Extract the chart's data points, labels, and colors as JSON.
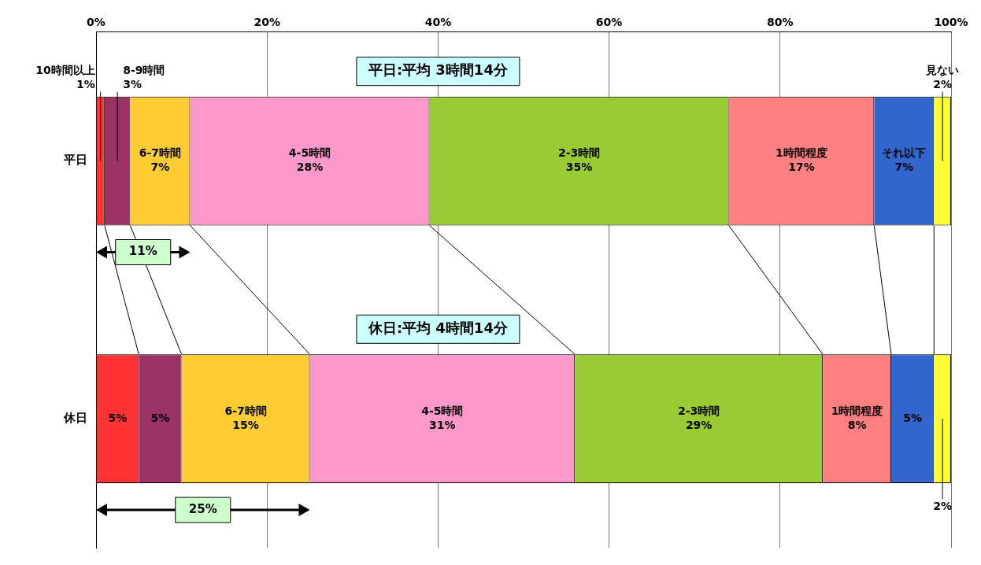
{
  "chart_data": {
    "type": "bar",
    "orientation": "horizontal",
    "stacked": true,
    "categories": [
      "平日",
      "休日"
    ],
    "xlim": [
      0,
      100
    ],
    "xticks": [
      {
        "value": 0,
        "label": "0%"
      },
      {
        "value": 20,
        "label": "20%"
      },
      {
        "value": 40,
        "label": "40%"
      },
      {
        "value": 60,
        "label": "60%"
      },
      {
        "value": 80,
        "label": "80%"
      },
      {
        "value": 100,
        "label": "100%"
      }
    ],
    "grid": "x",
    "legend": false,
    "series": [
      {
        "name": "10時間以上",
        "color": "#ff3333",
        "values": [
          1,
          5
        ],
        "value_labels": [
          "1%",
          "5%"
        ]
      },
      {
        "name": "8-9時間",
        "color": "#993366",
        "values": [
          3,
          5
        ],
        "value_labels": [
          "3%",
          "5%"
        ]
      },
      {
        "name": "6-7時間",
        "color": "#ffcc33",
        "values": [
          7,
          15
        ],
        "value_labels": [
          "7%",
          "15%"
        ]
      },
      {
        "name": "4-5時間",
        "color": "#ff99cc",
        "values": [
          28,
          31
        ],
        "value_labels": [
          "28%",
          "31%"
        ]
      },
      {
        "name": "2-3時間",
        "color": "#99cc33",
        "values": [
          35,
          29
        ],
        "value_labels": [
          "35%",
          "29%"
        ]
      },
      {
        "name": "1時間程度",
        "color": "#ff8080",
        "values": [
          17,
          8
        ],
        "value_labels": [
          "17%",
          "8%"
        ]
      },
      {
        "name": "それ以下",
        "color": "#3366cc",
        "values": [
          7,
          5
        ],
        "value_labels": [
          "7%",
          "5%"
        ]
      },
      {
        "name": "見ない",
        "color": "#ffff33",
        "values": [
          2,
          2
        ],
        "value_labels": [
          "2%",
          "2%"
        ]
      }
    ],
    "annotations": [
      "平日:平均 3時間14分",
      "休日:平均 4時間14分",
      "11%",
      "25%"
    ]
  }
}
